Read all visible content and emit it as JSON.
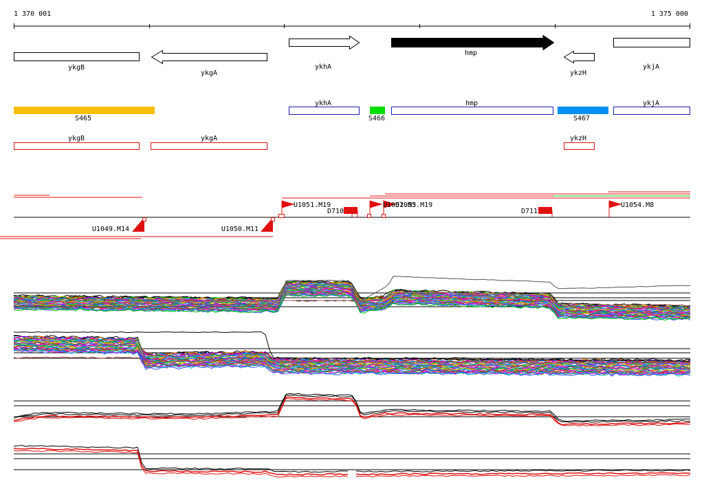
{
  "coords": {
    "start_label": "1 370 001",
    "end_label": "1 375 000"
  },
  "genes": [
    {
      "label": "ykgB",
      "strand": "none"
    },
    {
      "label": "ykgA",
      "strand": "minus"
    },
    {
      "label": "ykhA",
      "strand": "plus"
    },
    {
      "label": "hmp",
      "strand": "plus",
      "highlighted": true
    },
    {
      "label": "ykzH",
      "strand": "minus"
    },
    {
      "label": "ykjA",
      "strand": "none"
    }
  ],
  "segments": [
    {
      "label": "S465",
      "color": "#f5c000"
    },
    {
      "label": "ykhA",
      "color": "#1a1aa8"
    },
    {
      "label": "S466",
      "color": "#00e000"
    },
    {
      "label": "hmp",
      "color": "#1a1aa8"
    },
    {
      "label": "S467",
      "color": "#0090f0"
    },
    {
      "label": "ykjA",
      "color": "#1a1aa8"
    }
  ],
  "features": [
    {
      "label": "ykgB",
      "color": "#e01010"
    },
    {
      "label": "ykgA",
      "color": "#e01010"
    },
    {
      "label": "ykzH",
      "color": "#e01010"
    }
  ],
  "upstream_sites": [
    {
      "label": "U1051.M19"
    },
    {
      "label": "D710"
    },
    {
      "label": "U1052.M5"
    },
    {
      "label": "U1053.M19"
    },
    {
      "label": "D711"
    },
    {
      "label": "U1054.M8"
    }
  ],
  "downstream_sites": [
    {
      "label": "U1049.M14"
    },
    {
      "label": "U1050.M11"
    }
  ],
  "track_colors": [
    "#ff00ff",
    "#00c0c0",
    "#3050ff",
    "#00c000",
    "#c0c000",
    "#ff8000",
    "#8000ff",
    "#00a0ff",
    "#ff0080",
    "#808000",
    "#008080",
    "#a05020"
  ],
  "line_accent": "#e01010"
}
